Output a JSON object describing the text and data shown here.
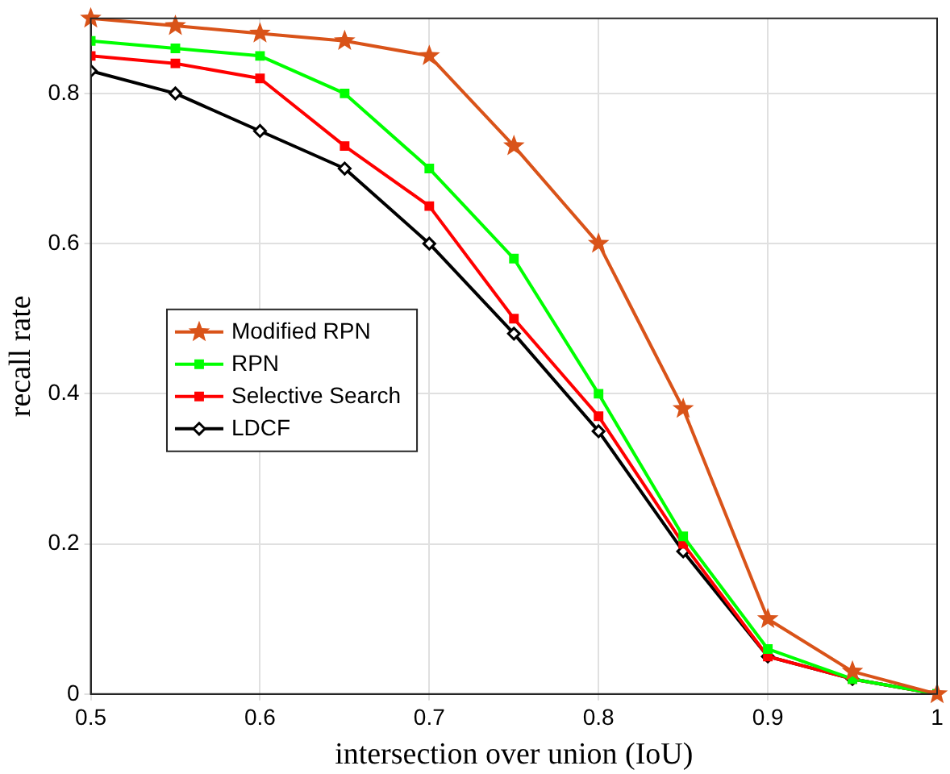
{
  "chart_data": {
    "type": "line",
    "xlabel": "intersection over union (IoU)",
    "ylabel": "recall rate",
    "x": [
      0.5,
      0.55,
      0.6,
      0.65,
      0.7,
      0.75,
      0.8,
      0.85,
      0.9,
      0.95,
      1
    ],
    "xlim": [
      0.5,
      1
    ],
    "xticks": [
      0.5,
      0.6,
      0.7,
      0.8,
      0.9,
      1
    ],
    "ylim": [
      0,
      0.9
    ],
    "yticks": [
      0,
      0.2,
      0.4,
      0.6,
      0.8
    ],
    "grid": true,
    "legend": "left",
    "line_style": "solid",
    "series": [
      {
        "name": "Modified RPN",
        "color": "#d95319",
        "marker": "star",
        "values": [
          0.9,
          0.89,
          0.88,
          0.87,
          0.85,
          0.73,
          0.6,
          0.38,
          0.1,
          0.03,
          0
        ]
      },
      {
        "name": "RPN",
        "color": "#00ff00",
        "marker": "square",
        "values": [
          0.87,
          0.86,
          0.85,
          0.8,
          0.7,
          0.58,
          0.4,
          0.21,
          0.06,
          0.02,
          0
        ]
      },
      {
        "name": "Selective Search",
        "color": "#ff0000",
        "marker": "square",
        "values": [
          0.85,
          0.84,
          0.82,
          0.73,
          0.65,
          0.5,
          0.37,
          0.2,
          0.05,
          0.02,
          0
        ]
      },
      {
        "name": "LDCF",
        "color": "#000000",
        "marker": "diamond",
        "values": [
          0.83,
          0.8,
          0.75,
          0.7,
          0.6,
          0.48,
          0.35,
          0.19,
          0.05,
          0.02,
          0
        ]
      }
    ]
  }
}
